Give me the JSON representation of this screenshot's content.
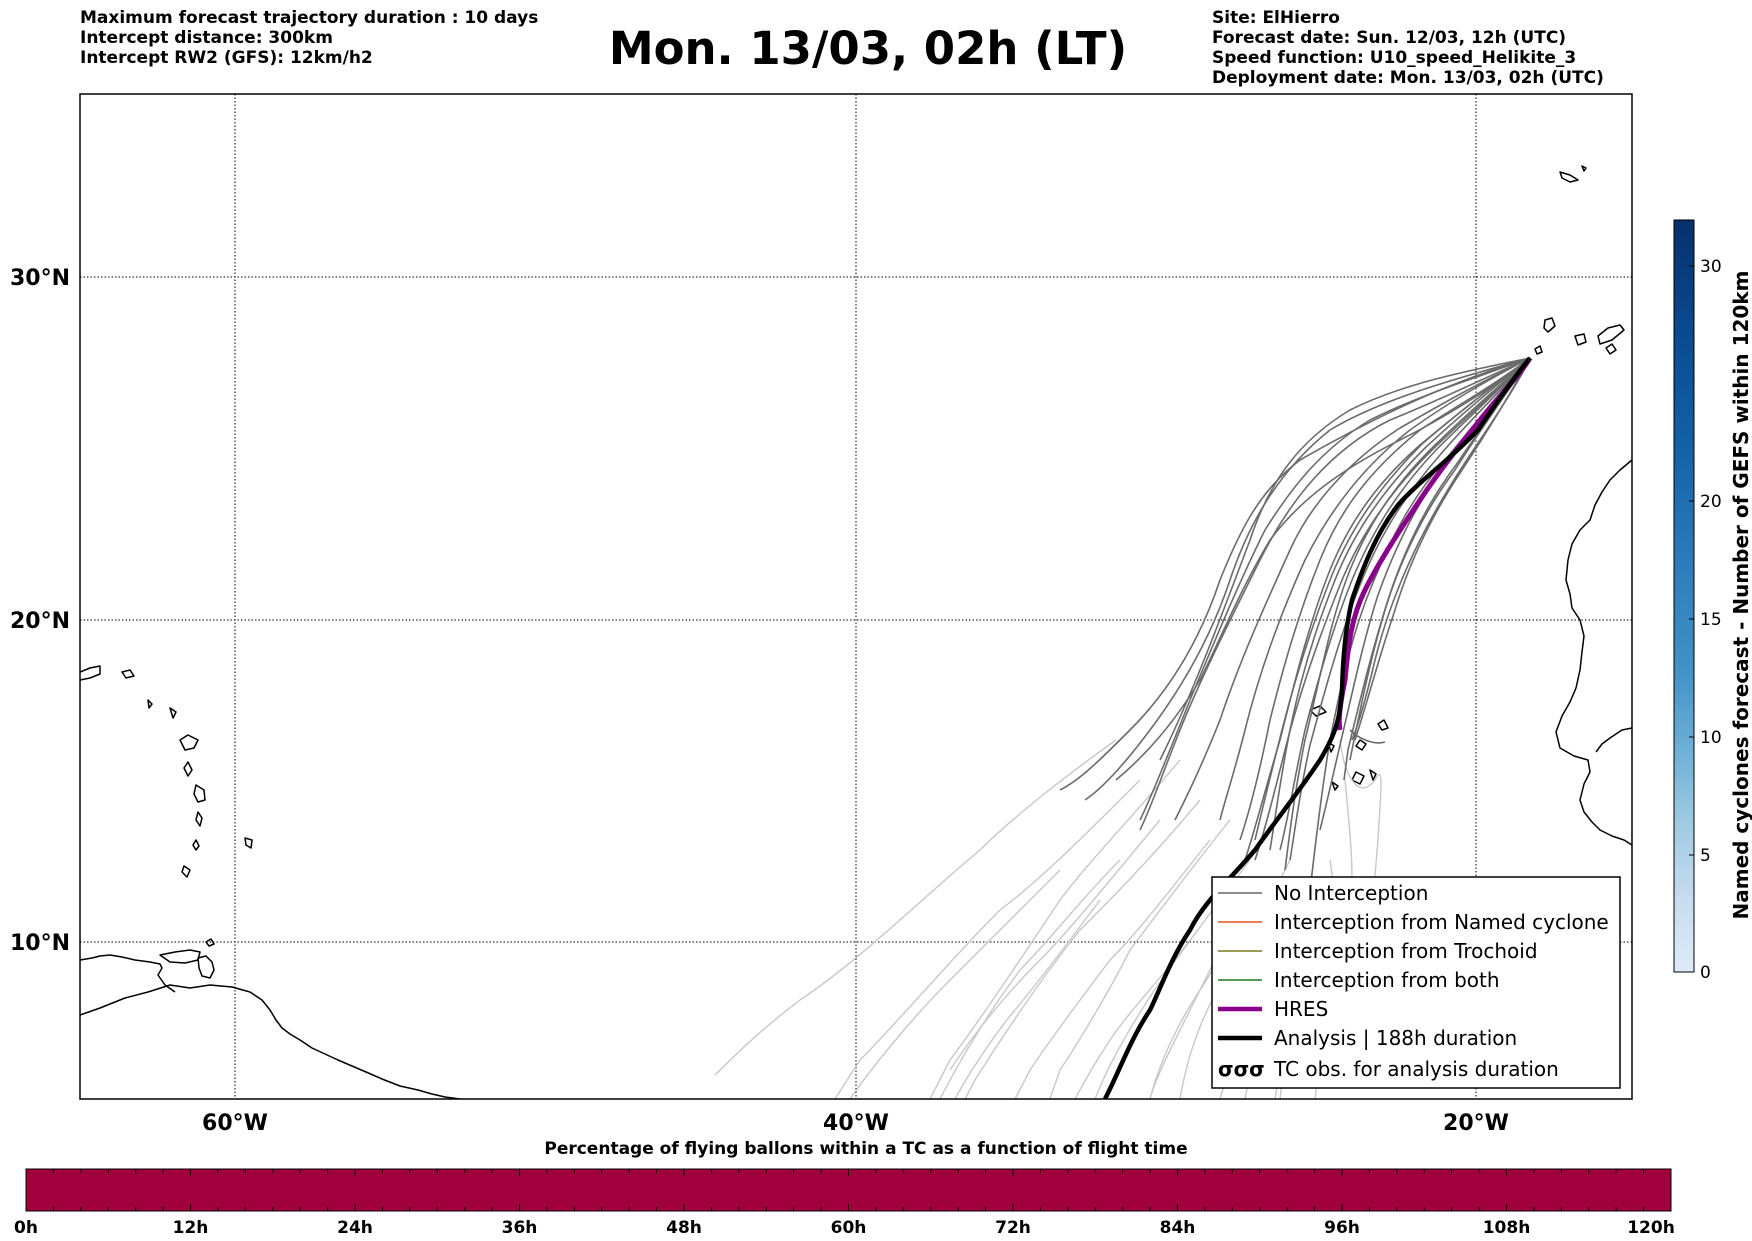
{
  "header": {
    "left": [
      "Maximum forecast trajectory duration : 10 days",
      "Intercept distance: 300km",
      "Intercept RW2 (GFS):  12km/h2"
    ],
    "title": "Mon. 13/03, 02h (LT)",
    "right": [
      "Site: ElHierro",
      "Forecast date: Sun. 12/03, 12h (UTC)",
      "Speed function: U10_speed_Helikite_3",
      "Deployment date: Mon. 13/03, 02h (UTC)"
    ]
  },
  "map": {
    "lon_labels": [
      "60°W",
      "40°W",
      "20°W"
    ],
    "lat_labels": [
      "30°N",
      "20°N",
      "10°N"
    ],
    "gridlines": true
  },
  "legend": {
    "items": [
      {
        "label": "No Interception",
        "color": "#666666",
        "style": "thin"
      },
      {
        "label": "Interception from Named cyclone",
        "color": "#e8501e",
        "style": "thin"
      },
      {
        "label": "Interception from Trochoid",
        "color": "#7a7a20",
        "style": "thin"
      },
      {
        "label": "Interception from both",
        "color": "#1f7a1f",
        "style": "thin"
      },
      {
        "label": "HRES",
        "color": "#8b008b",
        "style": "thick"
      },
      {
        "label": "Analysis | 188h duration",
        "color": "#000000",
        "style": "thick"
      },
      {
        "label": "TC obs. for analysis duration",
        "color": "#000000",
        "style": "marker"
      }
    ],
    "marker_glyph": "σσσ"
  },
  "colorbar": {
    "label": "Named cyclones forecast - Number of GEFS within 120km",
    "ticks": [
      "0",
      "5",
      "10",
      "15",
      "20",
      "30"
    ],
    "colors_top_to_bottom": [
      "#08306b",
      "#0a4a90",
      "#1361a8",
      "#2b7bba",
      "#4292c6",
      "#6baed6",
      "#9ecae1",
      "#c6dbef",
      "#deebf7"
    ]
  },
  "bottom_bar": {
    "title": "Percentage of flying ballons within a TC as a function of flight time",
    "color": "#a0003c",
    "ticks": [
      "0h",
      "12h",
      "24h",
      "36h",
      "48h",
      "60h",
      "72h",
      "84h",
      "96h",
      "108h",
      "120h"
    ]
  }
}
